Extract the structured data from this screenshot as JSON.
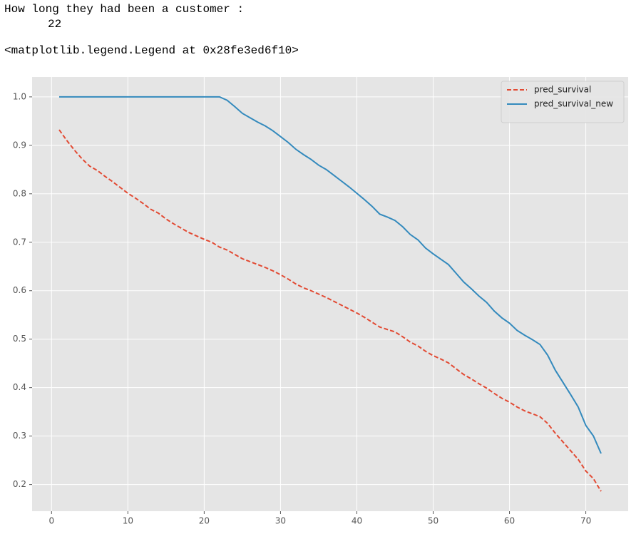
{
  "output_lines": [
    "How long they had been a customer :",
    "22",
    "<matplotlib.legend.Legend at 0x28fe3ed6f10>"
  ],
  "chart_data": {
    "type": "line",
    "x": [
      1,
      2,
      3,
      4,
      5,
      6,
      7,
      8,
      9,
      10,
      11,
      12,
      13,
      14,
      15,
      16,
      17,
      18,
      19,
      20,
      21,
      22,
      23,
      24,
      25,
      26,
      27,
      28,
      29,
      30,
      31,
      32,
      33,
      34,
      35,
      36,
      37,
      38,
      39,
      40,
      41,
      42,
      43,
      44,
      45,
      46,
      47,
      48,
      49,
      50,
      51,
      52,
      53,
      54,
      55,
      56,
      57,
      58,
      59,
      60,
      61,
      62,
      63,
      64,
      65,
      66,
      67,
      68,
      69,
      70,
      71,
      72
    ],
    "series": [
      {
        "name": "pred_survival",
        "color": "#e24a33",
        "linestyle": "dashed",
        "values": [
          0.932,
          0.91,
          0.89,
          0.872,
          0.857,
          0.848,
          0.836,
          0.825,
          0.813,
          0.801,
          0.791,
          0.78,
          0.768,
          0.76,
          0.748,
          0.738,
          0.729,
          0.72,
          0.713,
          0.706,
          0.7,
          0.69,
          0.684,
          0.675,
          0.666,
          0.66,
          0.654,
          0.648,
          0.641,
          0.633,
          0.624,
          0.614,
          0.606,
          0.6,
          0.593,
          0.586,
          0.578,
          0.57,
          0.562,
          0.554,
          0.545,
          0.535,
          0.525,
          0.52,
          0.515,
          0.505,
          0.494,
          0.486,
          0.475,
          0.466,
          0.459,
          0.451,
          0.439,
          0.427,
          0.418,
          0.408,
          0.399,
          0.388,
          0.378,
          0.37,
          0.36,
          0.352,
          0.346,
          0.34,
          0.326,
          0.306,
          0.288,
          0.27,
          0.252,
          0.228,
          0.212,
          0.186
        ]
      },
      {
        "name": "pred_survival_new",
        "color": "#348abd",
        "linestyle": "solid",
        "values": [
          1,
          1,
          1,
          1,
          1,
          1,
          1,
          1,
          1,
          1,
          1,
          1,
          1,
          1,
          1,
          1,
          1,
          1,
          1,
          1,
          1,
          1,
          0.993,
          0.98,
          0.966,
          0.957,
          0.948,
          0.94,
          0.93,
          0.918,
          0.906,
          0.892,
          0.881,
          0.871,
          0.859,
          0.85,
          0.838,
          0.826,
          0.814,
          0.801,
          0.788,
          0.774,
          0.758,
          0.752,
          0.745,
          0.732,
          0.716,
          0.705,
          0.688,
          0.676,
          0.665,
          0.654,
          0.636,
          0.618,
          0.604,
          0.589,
          0.576,
          0.558,
          0.544,
          0.533,
          0.518,
          0.508,
          0.499,
          0.489,
          0.467,
          0.436,
          0.411,
          0.386,
          0.36,
          0.322,
          0.3,
          0.264
        ]
      }
    ],
    "xlim": [
      -2.55,
      75.55
    ],
    "xticks": [
      0,
      10,
      20,
      30,
      40,
      50,
      60,
      70
    ],
    "ylim": [
      0.145,
      1.041
    ],
    "yticks": [
      0.2,
      0.3,
      0.4,
      0.5,
      0.6,
      0.7,
      0.8,
      0.9,
      {
        "value": 1,
        "label": "1.0"
      }
    ],
    "grid": true,
    "legend": "upper right",
    "background": "#e5e5e5"
  }
}
